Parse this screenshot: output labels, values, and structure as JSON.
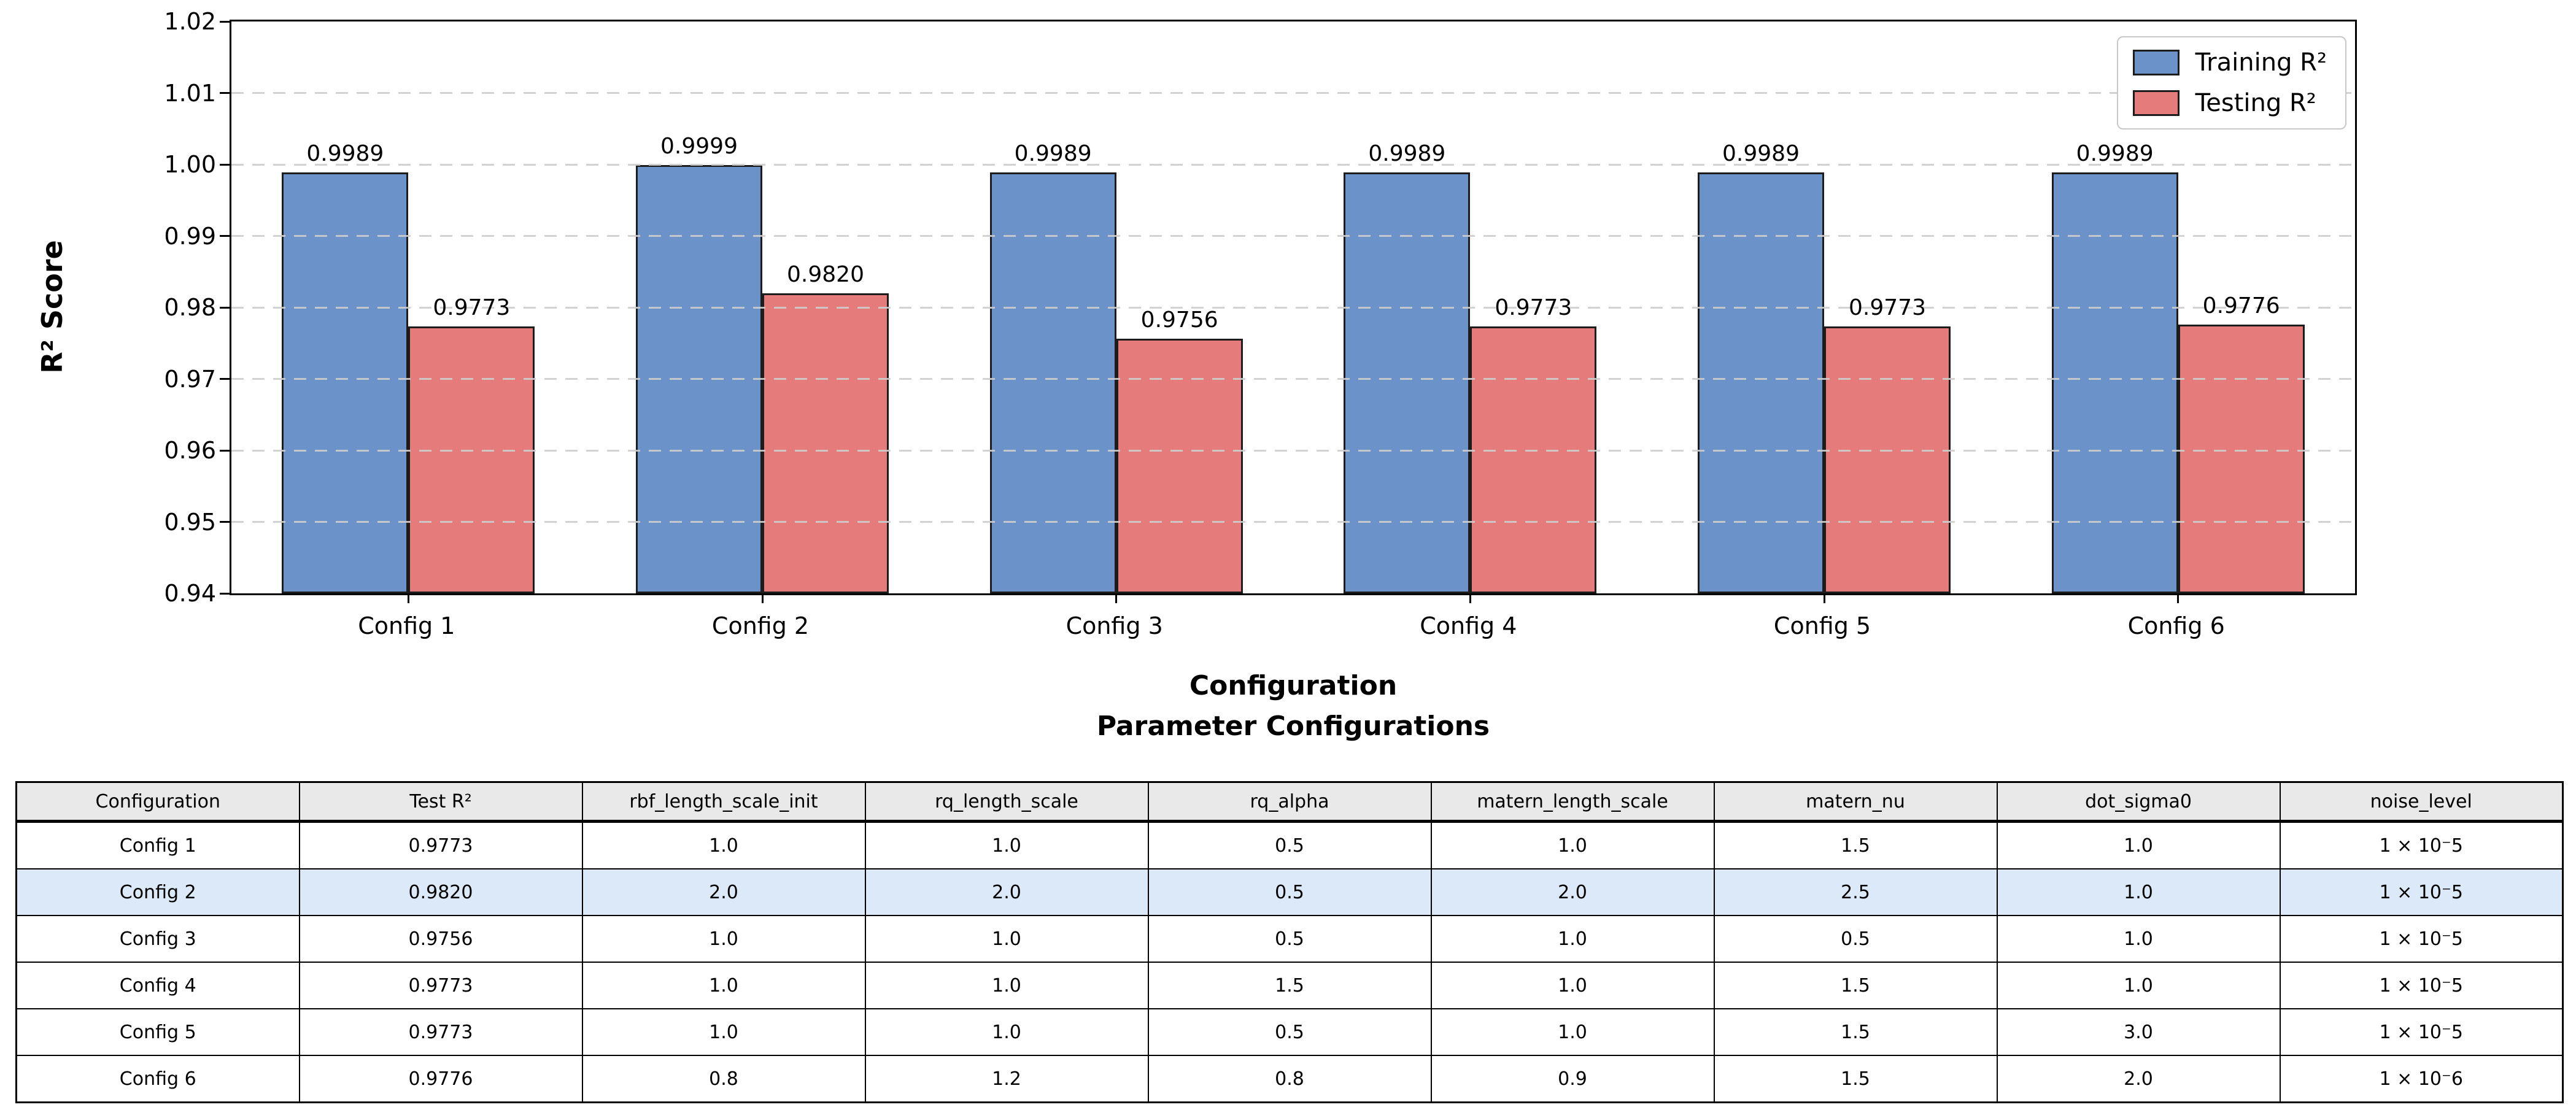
{
  "chart_data": {
    "type": "bar",
    "categories": [
      "Config 1",
      "Config 2",
      "Config 3",
      "Config 4",
      "Config 5",
      "Config 6"
    ],
    "series": [
      {
        "name": "Training R²",
        "color": "#6b93c9",
        "values": [
          0.9989,
          0.9999,
          0.9989,
          0.9989,
          0.9989,
          0.9989
        ]
      },
      {
        "name": "Testing R²",
        "color": "#e57b7b",
        "values": [
          0.9773,
          0.982,
          0.9756,
          0.9773,
          0.9773,
          0.9776
        ]
      }
    ],
    "bar_labels": [
      [
        "0.9989",
        "0.9999",
        "0.9989",
        "0.9989",
        "0.9989",
        "0.9989"
      ],
      [
        "0.9773",
        "0.9820",
        "0.9756",
        "0.9773",
        "0.9773",
        "0.9776"
      ]
    ],
    "xlabel": "Configuration",
    "xlabel_line2": "Parameter Configurations",
    "ylabel": "R² Score",
    "ylim": [
      0.94,
      1.02
    ],
    "yticks": [
      "1.02",
      "1.01",
      "1.00",
      "0.99",
      "0.98",
      "0.97",
      "0.96",
      "0.95",
      "0.94"
    ],
    "grid": true,
    "legend_position": "upper right",
    "bar_edge_color": "#1c1c1c",
    "grid_color": "#cdcdcd"
  },
  "table": {
    "headers": [
      "Configuration",
      "Test R²",
      "rbf_length_scale_init",
      "rq_length_scale",
      "rq_alpha",
      "matern_length_scale",
      "matern_nu",
      "dot_sigma0",
      "noise_level"
    ],
    "rows": [
      [
        "Config 1",
        "0.9773",
        "1.0",
        "1.0",
        "0.5",
        "1.0",
        "1.5",
        "1.0",
        "1 × 10⁻5"
      ],
      [
        "Config 2",
        "0.9820",
        "2.0",
        "2.0",
        "0.5",
        "2.0",
        "2.5",
        "1.0",
        "1 × 10⁻5"
      ],
      [
        "Config 3",
        "0.9756",
        "1.0",
        "1.0",
        "0.5",
        "1.0",
        "0.5",
        "1.0",
        "1 × 10⁻5"
      ],
      [
        "Config 4",
        "0.9773",
        "1.0",
        "1.0",
        "1.5",
        "1.0",
        "1.5",
        "1.0",
        "1 × 10⁻5"
      ],
      [
        "Config 5",
        "0.9773",
        "1.0",
        "1.0",
        "0.5",
        "1.0",
        "1.5",
        "3.0",
        "1 × 10⁻5"
      ],
      [
        "Config 6",
        "0.9776",
        "0.8",
        "1.2",
        "0.8",
        "0.9",
        "1.5",
        "2.0",
        "1 × 10⁻6"
      ]
    ],
    "highlighted_row_index": 1,
    "colors": {
      "header_bg": "#e9e9e9",
      "highlight_bg": "#dbe9f8",
      "row_bg": "#ffffff",
      "border": "#000000"
    }
  }
}
